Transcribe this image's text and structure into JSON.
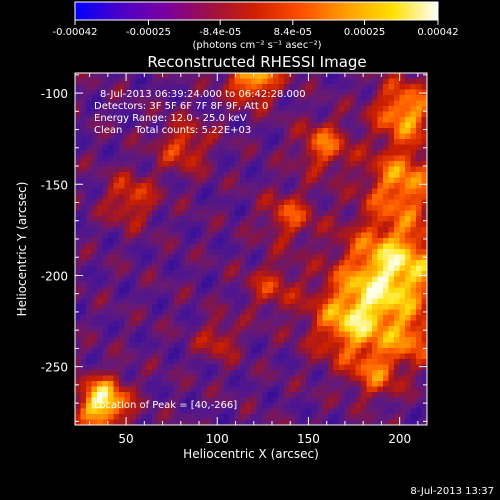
{
  "colorbar": {
    "tick_labels": [
      "-0.00042",
      "-0.00025",
      "-8.4e-05",
      "8.4e-05",
      "0.00025",
      "0.00042"
    ],
    "tick_values": [
      -0.00042,
      -0.00025,
      -8.4e-05,
      8.4e-05,
      0.00025,
      0.00042
    ],
    "range": [
      -0.00042,
      0.00042
    ],
    "unit_label": "(photons cm⁻² s⁻¹ asec⁻²)",
    "colors": [
      "#0000ff",
      "#4a00c8",
      "#7a00a0",
      "#a01040",
      "#d02000",
      "#ff5000",
      "#ffa000",
      "#ffe000",
      "#ffffff"
    ]
  },
  "plot": {
    "title": "Reconstructed RHESSI Image",
    "info_lines": [
      "8-Jul-2013 06:39:24.000 to 06:42:28.000",
      "Detectors: 3F 5F 6F 7F 8F 9F, Att 0",
      "Energy Range: 12.0 - 25.0 keV",
      "Clean    Total counts: 5.22E+03"
    ],
    "peak_label": "Location of Peak = [40,-266]",
    "footer_date": "8-Jul-2013 13:37"
  },
  "chart_data": {
    "type": "heatmap",
    "title": "Reconstructed RHESSI Image",
    "xlabel": "Heliocentric X (arcsec)",
    "ylabel": "Heliocentric Y (arcsec)",
    "xlim": [
      22,
      215
    ],
    "ylim": [
      -282,
      -89
    ],
    "x_ticks": [
      50,
      100,
      150,
      200
    ],
    "y_ticks": [
      -100,
      -150,
      -200,
      -250
    ],
    "value_range": [
      -0.00042,
      0.00042
    ],
    "peak": {
      "x": 40,
      "y": -266
    }
  }
}
